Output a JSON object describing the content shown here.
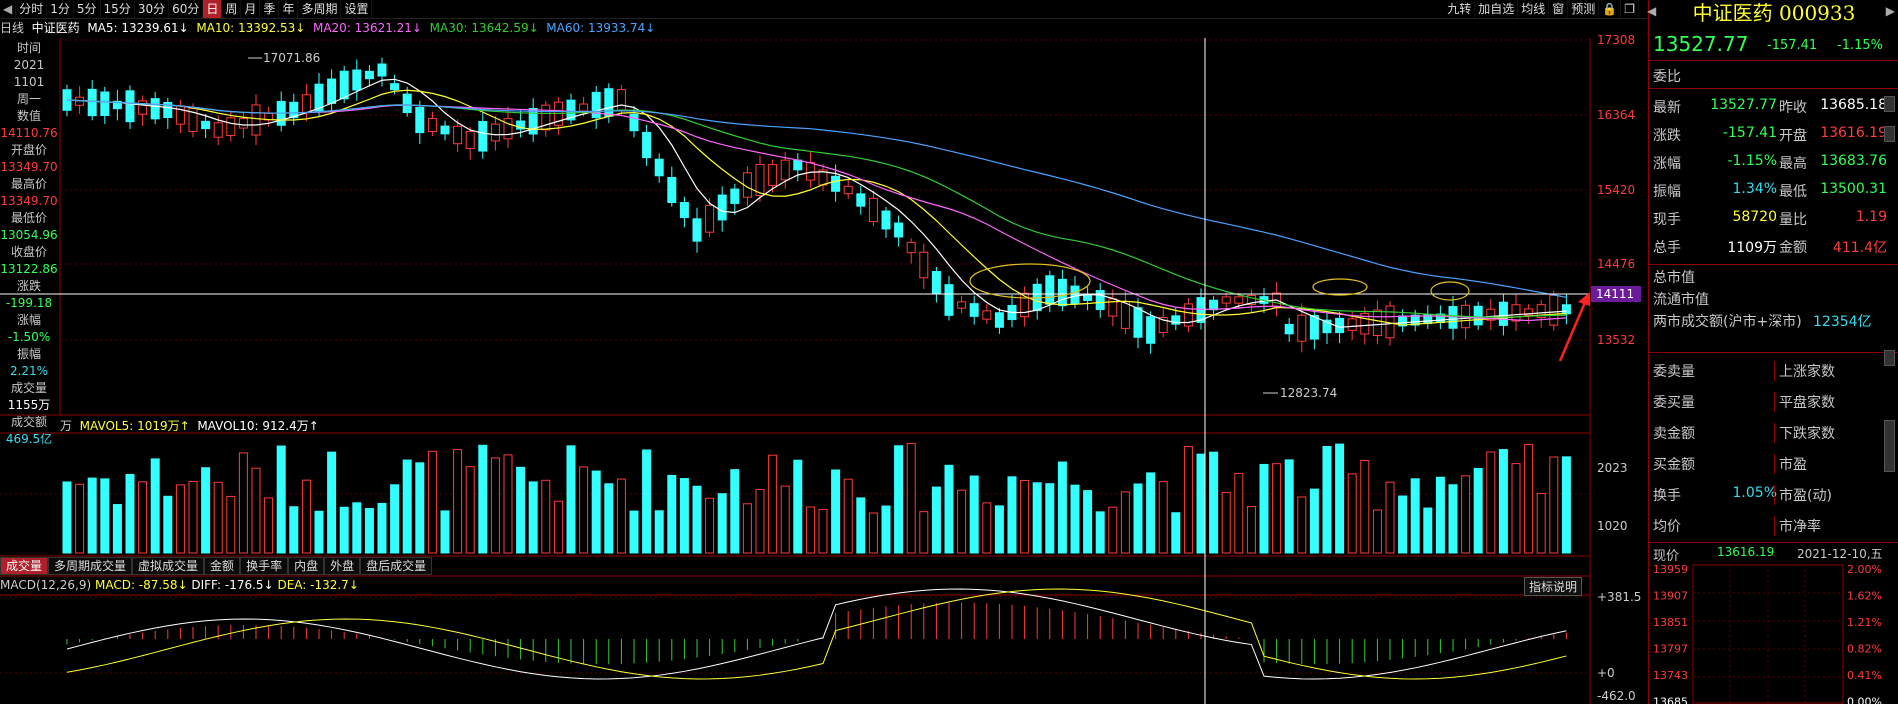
{
  "toolbar": {
    "periods": [
      "分时",
      "1分",
      "5分",
      "15分",
      "30分",
      "60分",
      "日",
      "周",
      "月",
      "季",
      "年",
      "多周期",
      "设置"
    ],
    "active": "日",
    "right_items": [
      "九转",
      "加自选",
      "均线",
      "窗",
      "预测"
    ]
  },
  "ma_header": {
    "period": "日线",
    "name": "中证医药",
    "ma5": "MA5: 13239.61↓",
    "ma10": "MA10: 13392.53↓",
    "ma20": "MA20: 13621.21↓",
    "ma30": "MA30: 13642.59↓",
    "ma60": "MA60: 13933.74↓"
  },
  "left_info": {
    "time_label": "时间",
    "year": "2021",
    "date": "1101",
    "weekday": "周一",
    "value_label": "数值",
    "value": "14110.76",
    "open_label": "开盘价",
    "open": "13349.70",
    "high_label": "最高价",
    "high": "13349.70",
    "low_label": "最低价",
    "low": "13054.96",
    "close_label": "收盘价",
    "close": "13122.86",
    "change_label": "涨跌",
    "change": "-199.18",
    "pct_label": "涨幅",
    "pct": "-1.50%",
    "amp_label": "振幅",
    "amp": "2.21%",
    "vol_label": "成交量",
    "vol": "1155万",
    "amt_label": "成交额",
    "amt": "469.5亿"
  },
  "price_axis": [
    "17308",
    "16364",
    "15420",
    "14476",
    "14111",
    "13532"
  ],
  "price_annotations": {
    "high": "17071.86",
    "low": "12823.74"
  },
  "volume_header": {
    "unit": "万",
    "mavol5": "MAVOL5: 1019万↑",
    "mavol10": "MAVOL10: 912.4万↑"
  },
  "volume_axis": [
    "2023",
    "1020"
  ],
  "bottom_tabs": [
    "成交量",
    "多周期成交量",
    "虚拟成交量",
    "金额",
    "换手率",
    "内盘",
    "外盘",
    "盘后成交量"
  ],
  "macd_header": {
    "label": "MACD(12,26,9)",
    "macd": "MACD: -87.58↓",
    "diff": "DIFF: -176.5↓",
    "dea": "DEA: -132.7↓"
  },
  "macd_axis": [
    "+381.5",
    "+0",
    "-462.0"
  ],
  "indicator_button": "指标说明",
  "colors": {
    "up": "#ff3b3b",
    "down": "#33ffff",
    "ma5": "#ffffff",
    "ma10": "#ffff33",
    "ma20": "#ff66ff",
    "ma30": "#33cc33",
    "ma60": "#4aa3ff",
    "bg": "#000000"
  },
  "quote": {
    "title": "中证医药 000933",
    "price": "13527.77",
    "change": "-157.41",
    "pct": "-1.15%",
    "weibi_label": "委比",
    "rows": [
      {
        "l1": "最新",
        "v1": "13527.77",
        "l2": "昨收",
        "v2": "13685.18"
      },
      {
        "l1": "涨跌",
        "v1": "-157.41",
        "l2": "开盘",
        "v2": "13616.19"
      },
      {
        "l1": "涨幅",
        "v1": "-1.15%",
        "l2": "最高",
        "v2": "13683.76"
      },
      {
        "l1": "振幅",
        "v1": "1.34%",
        "l2": "最低",
        "v2": "13500.31"
      },
      {
        "l1": "现手",
        "v1": "58720",
        "l2": "量比",
        "v2": "1.19"
      },
      {
        "l1": "总手",
        "v1": "1109万",
        "l2": "金额",
        "v2": "411.4亿"
      }
    ],
    "cap_rows": [
      "总市值",
      "流通市值"
    ],
    "turnover_label": "两市成交额(沪市+深市)",
    "turnover_value": "12354亿",
    "grid_rows": [
      {
        "l": "委卖量",
        "r": "上涨家数"
      },
      {
        "l": "委买量",
        "r": "平盘家数"
      },
      {
        "l": "卖金额",
        "r": "下跌家数"
      },
      {
        "l": "买金额",
        "r": "市盈"
      },
      {
        "l": "换手",
        "v": "1.05%",
        "r": "市盈(动)"
      },
      {
        "l": "均价",
        "r": "市净率"
      }
    ],
    "now_label": "现价",
    "now_value": "13616.19",
    "date": "2021-12-10,五"
  },
  "mini_chart": {
    "left_axis": [
      "13959",
      "13907",
      "13851",
      "13797",
      "13743",
      "13685"
    ],
    "right_axis": [
      "2.00%",
      "1.62%",
      "1.21%",
      "0.82%",
      "0.41%",
      "0.00%"
    ]
  }
}
